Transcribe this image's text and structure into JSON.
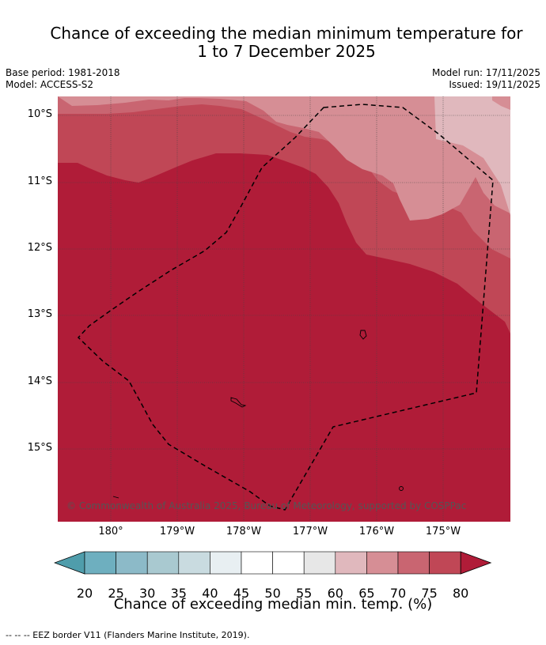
{
  "title": {
    "line1": "Chance of exceeding the median minimum temperature for",
    "line2": "1 to 7 December 2025"
  },
  "meta": {
    "base_period": "Base period: 1981-2018",
    "model": "Model: ACCESS-S2",
    "model_run": "Model run: 17/11/2025",
    "issued": "Issued: 19/11/2025"
  },
  "map": {
    "latitude_labels": [
      "10°S",
      "11°S",
      "12°S",
      "13°S",
      "14°S",
      "15°S"
    ],
    "longitude_labels": [
      "180°",
      "179°W",
      "178°W",
      "177°W",
      "176°W",
      "175°W"
    ],
    "copyright": "© Commonwealth of Australia 2025, Bureau of Meteorology, supported by COSPPac",
    "band_colors": {
      "60-65": "#e0b8bd",
      "65-70": "#d68e95",
      "70-75": "#c96571",
      "75-80": "#c04756",
      "80+": "#b01c38"
    }
  },
  "colorbar": {
    "ticks": [
      "20",
      "25",
      "30",
      "35",
      "40",
      "45",
      "50",
      "55",
      "60",
      "65",
      "70",
      "75",
      "80"
    ],
    "colors": [
      "#4f9dab",
      "#6eafbf",
      "#8cbac8",
      "#a9c9d0",
      "#c9dbe0",
      "#e8eff2",
      "#ffffff",
      "#ffffff",
      "#e7e7e7",
      "#e0b8bd",
      "#d68e95",
      "#c96571",
      "#c04756",
      "#b01c38"
    ],
    "title": "Chance of exceeding median min. temp. (%)"
  },
  "footnote": "--  --  -- EEZ border V11 (Flanders Marine Institute, 2019)."
}
